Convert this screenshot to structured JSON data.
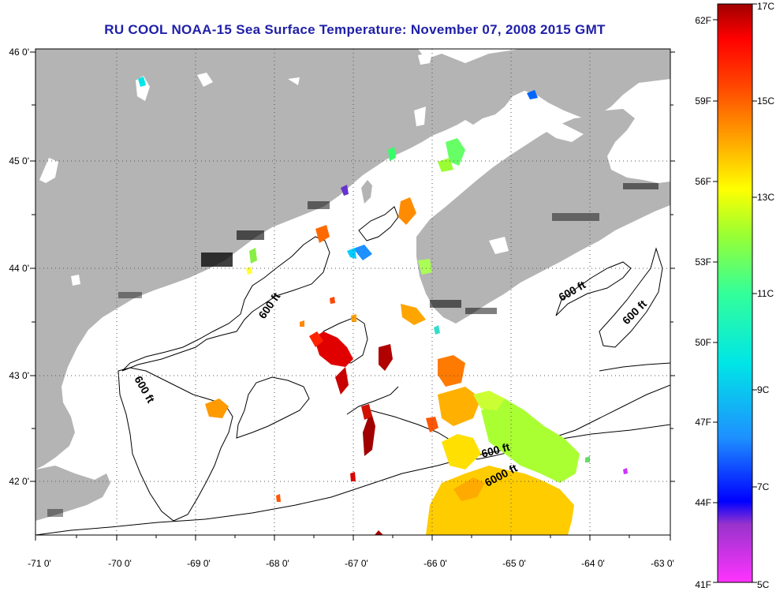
{
  "title": "RU COOL  NOAA-15  Sea Surface Temperature:  November 07, 2008 2015 GMT",
  "map": {
    "lon_ticks": [
      "-71 0'",
      "-70 0'",
      "-69 0'",
      "-68 0'",
      "-67 0'",
      "-66 0'",
      "-65 0'",
      "-64 0'",
      "-63 0'"
    ],
    "lat_ticks": [
      "46 0'",
      "45 0'",
      "44 0'",
      "43 0'",
      "42 0'"
    ],
    "contour_labels": [
      "600 ft",
      "600 ft",
      "600 ft",
      "600 ft",
      "600 ft",
      "6000 ft"
    ],
    "colors": {
      "land": "#b4b4b4",
      "background": "#ffffff",
      "grid": "#555555"
    }
  },
  "colorbar": {
    "fahrenheit": [
      "62F",
      "59F",
      "56F",
      "53F",
      "50F",
      "47F",
      "44F",
      "41F"
    ],
    "celsius": [
      "17C",
      "15C",
      "13C",
      "11C",
      "9C",
      "7C",
      "5C"
    ],
    "range_c": [
      5,
      17
    ],
    "range_f": [
      41,
      62
    ]
  }
}
